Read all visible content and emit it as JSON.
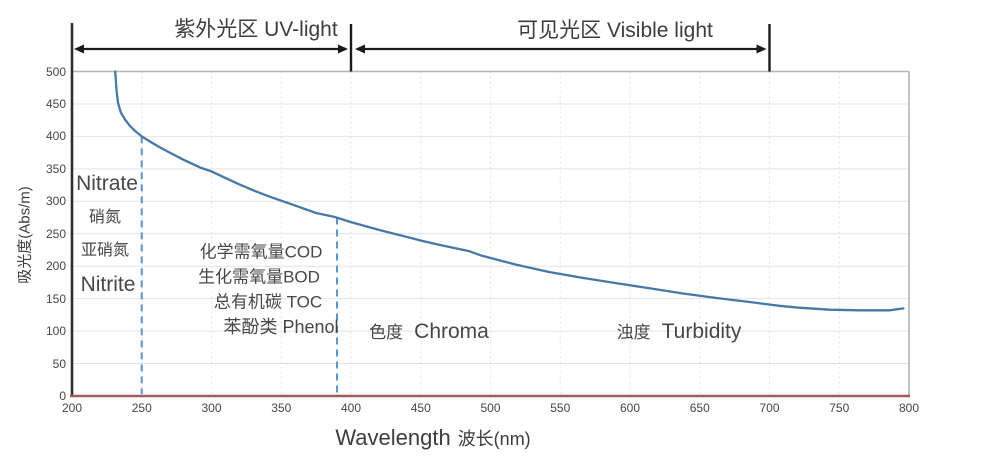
{
  "header": {
    "uv_label": "紫外光区 UV-light",
    "visible_label": "可见光区 Visible light"
  },
  "axes": {
    "y_label": "吸光度(Abs/m)",
    "x_label_en": "Wavelength",
    "x_label_zh": "波长(nm)"
  },
  "annotations": {
    "nitrate_en": "Nitrate",
    "nitrate_zh": "硝氮",
    "nitrite_zh": "亚硝氮",
    "nitrite_en": "Nitrite",
    "cod": "化学需氧量COD",
    "bod": "生化需氧量BOD",
    "toc": "总有机碳 TOC",
    "phenol": "苯酚类 Phenol",
    "chroma_zh": "色度",
    "chroma_en": "Chroma",
    "turbidity_zh": "浊度",
    "turbidity_en": "Turbidity"
  },
  "colors": {
    "curve": "#4878a6",
    "reference_dash": "#5b94c8",
    "x_axis": "#a05c5c",
    "y_axis": "#2f2f2f",
    "border": "#b5b5b5",
    "grid": "#e4e4e4",
    "arrow": "#1a1a1a"
  },
  "chart_data": {
    "type": "line",
    "title": "",
    "xlabel": "Wavelength 波长(nm)",
    "ylabel": "吸光度(Abs/m)",
    "xlim": [
      200,
      800
    ],
    "ylim": [
      0,
      500
    ],
    "x_ticks": [
      200,
      250,
      300,
      350,
      400,
      450,
      500,
      550,
      600,
      650,
      700,
      750,
      800
    ],
    "y_ticks": [
      0,
      50,
      100,
      150,
      200,
      250,
      300,
      350,
      400,
      450,
      500
    ],
    "grid": true,
    "legend": false,
    "regions": [
      {
        "label": "紫外光区 UV-light",
        "range_nm": [
          200,
          400
        ]
      },
      {
        "label": "可见光区 Visible light",
        "range_nm": [
          400,
          700
        ]
      }
    ],
    "reference_lines": [
      {
        "nm": 250,
        "from_value": 400
      },
      {
        "nm": 390,
        "from_value": 275
      }
    ],
    "series": [
      {
        "name": "absorbance-spectrum",
        "points": [
          [
            231,
            500
          ],
          [
            232,
            470
          ],
          [
            233,
            452
          ],
          [
            235,
            437
          ],
          [
            238,
            426
          ],
          [
            242,
            415
          ],
          [
            246,
            407
          ],
          [
            250,
            400
          ],
          [
            256,
            392
          ],
          [
            263,
            383
          ],
          [
            270,
            375
          ],
          [
            280,
            364
          ],
          [
            292,
            352
          ],
          [
            300,
            346
          ],
          [
            310,
            336
          ],
          [
            320,
            326
          ],
          [
            331,
            316
          ],
          [
            342,
            307
          ],
          [
            350,
            301
          ],
          [
            363,
            291
          ],
          [
            375,
            282
          ],
          [
            388,
            276
          ],
          [
            400,
            268
          ],
          [
            420,
            256
          ],
          [
            442,
            244
          ],
          [
            451,
            239
          ],
          [
            463,
            233
          ],
          [
            485,
            223
          ],
          [
            494,
            216
          ],
          [
            519,
            202
          ],
          [
            542,
            191
          ],
          [
            566,
            182
          ],
          [
            590,
            174
          ],
          [
            614,
            166
          ],
          [
            638,
            158
          ],
          [
            662,
            151
          ],
          [
            685,
            145
          ],
          [
            707,
            139
          ],
          [
            721,
            136
          ],
          [
            743,
            133
          ],
          [
            764,
            132
          ],
          [
            786,
            132
          ],
          [
            796,
            135
          ]
        ]
      }
    ]
  }
}
